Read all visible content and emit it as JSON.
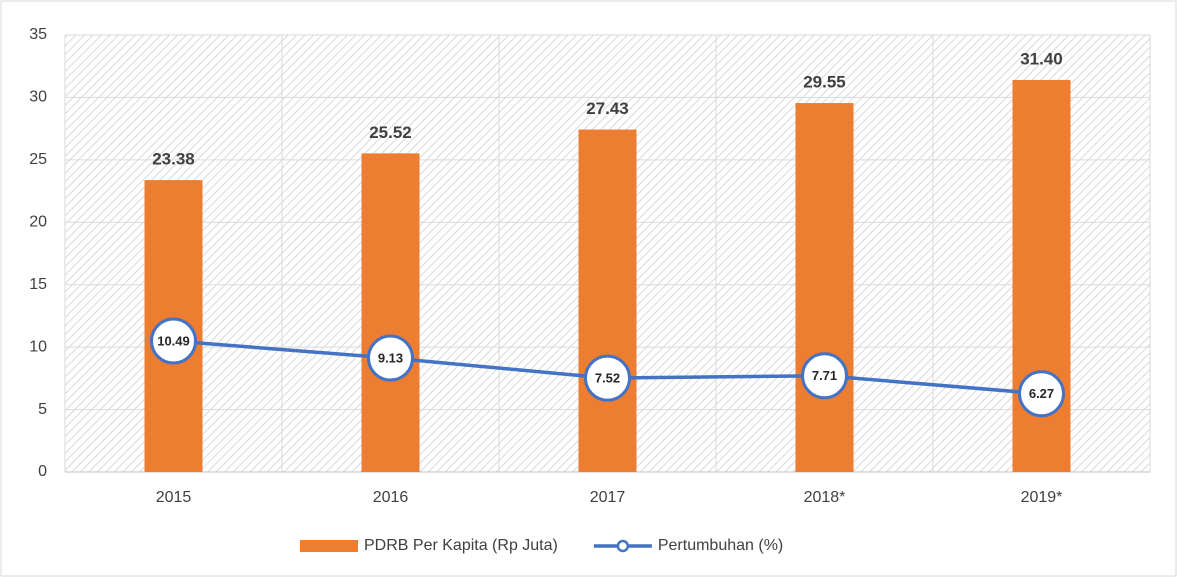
{
  "chart_data": {
    "type": "combo",
    "categories": [
      "2015",
      "2016",
      "2017",
      "2018*",
      "2019*"
    ],
    "series": [
      {
        "name": "PDRB Per Kapita (Rp Juta)",
        "type": "bar",
        "color": "#ed7d31",
        "values": [
          23.38,
          25.52,
          27.43,
          29.55,
          31.4
        ],
        "value_labels": [
          "23.38",
          "25.52",
          "27.43",
          "29.55",
          "31.40"
        ]
      },
      {
        "name": "Pertumbuhan (%)",
        "type": "line",
        "color": "#4472c4",
        "values": [
          10.49,
          9.13,
          7.52,
          7.71,
          6.27
        ]
      }
    ],
    "ylim": [
      0,
      35
    ],
    "yticks": [
      0,
      5,
      10,
      15,
      20,
      25,
      30,
      35
    ],
    "grid": true,
    "legend": "bottom"
  }
}
